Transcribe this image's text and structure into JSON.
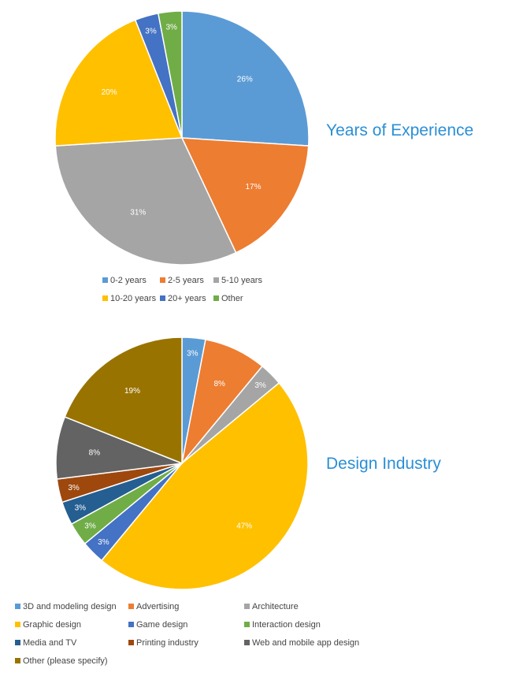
{
  "chart_data": [
    {
      "type": "pie",
      "title": "Years of Experience",
      "legend_position": "bottom",
      "categories": [
        "0-2 years",
        "2-5 years",
        "5-10 years",
        "10-20 years",
        "20+ years",
        "Other"
      ],
      "values": [
        26,
        17,
        31,
        20,
        3,
        3
      ],
      "labels": [
        "26%",
        "17%",
        "31%",
        "20%",
        "3%",
        "3%"
      ],
      "colors": [
        "#5b9bd5",
        "#ed7d31",
        "#a5a5a5",
        "#ffc000",
        "#4472c4",
        "#70ad47"
      ]
    },
    {
      "type": "pie",
      "title": "Design Industry",
      "legend_position": "bottom",
      "categories": [
        "3D and modeling design",
        "Advertising",
        "Architecture",
        "Graphic design",
        "Game design",
        "Interaction design",
        "Media and TV",
        "Printing industry",
        "Web and mobile app design",
        "Other (please specify)"
      ],
      "values": [
        3,
        8,
        3,
        47,
        3,
        3,
        3,
        3,
        8,
        19
      ],
      "labels": [
        "3%",
        "8%",
        "3%",
        "47%",
        "3%",
        "3%",
        "3%",
        "3%",
        "8%",
        "19%"
      ],
      "colors": [
        "#5b9bd5",
        "#ed7d31",
        "#a5a5a5",
        "#ffc000",
        "#4472c4",
        "#70ad47",
        "#255e91",
        "#9e480e",
        "#636363",
        "#997300"
      ]
    }
  ]
}
